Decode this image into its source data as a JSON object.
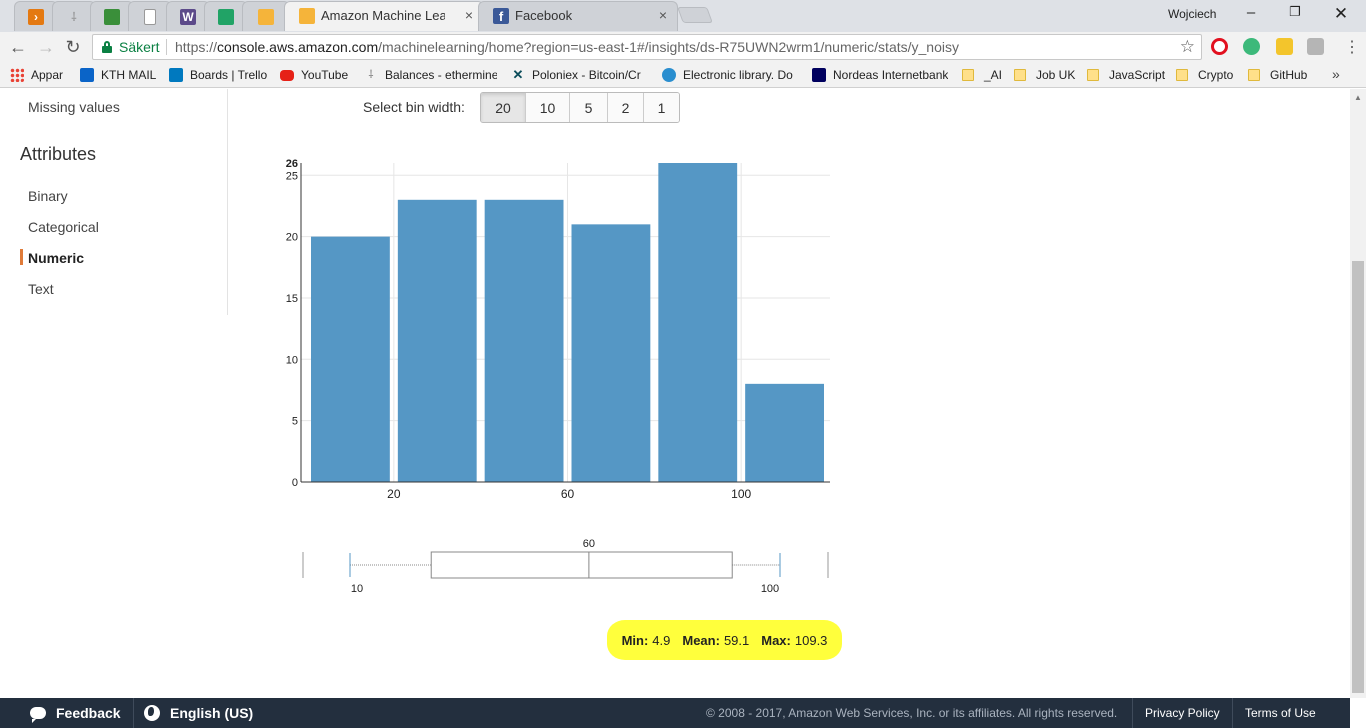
{
  "browser": {
    "tabs": [
      {
        "title": "",
        "icon": "aws-console-icon",
        "color": "#e47911"
      },
      {
        "title": "",
        "icon": "tool-icon",
        "color": "#888888"
      },
      {
        "title": "",
        "icon": "android-studio-icon",
        "color": "#3a8f3a"
      },
      {
        "title": "",
        "icon": "document-icon",
        "color": "#999999"
      },
      {
        "title": "",
        "icon": "w-app-icon",
        "color": "#5c4a8a"
      },
      {
        "title": "",
        "icon": "spreadsheet-icon",
        "color": "#21a366"
      },
      {
        "title": "",
        "icon": "package-icon",
        "color": "#f5b43a"
      },
      {
        "title": "Amazon Machine Learnin",
        "icon": "package-icon",
        "color": "#f5b43a"
      },
      {
        "title": "Facebook",
        "icon": "facebook-icon",
        "color": "#3b5998"
      }
    ],
    "user_name": "Wojciech",
    "close_glyph": "×",
    "secure_label": "Säkert",
    "url_scheme": "https://",
    "url_host": "console.aws.amazon.com",
    "url_path": "/machinelearning/home?region=us-east-1#/insights/ds-R75UWN2wrm1/numeric/stats/y_noisy",
    "bookmarks": [
      {
        "label": "Appar",
        "icon": "apps-grid-icon",
        "color": "#e94235"
      },
      {
        "label": "KTH MAIL",
        "icon": "outlook-icon",
        "color": "#0a64c8"
      },
      {
        "label": "Boards | Trello",
        "icon": "trello-icon",
        "color": "#0079bf"
      },
      {
        "label": "YouTube",
        "icon": "youtube-icon",
        "color": "#e62117"
      },
      {
        "label": "Balances - ethermine",
        "icon": "pickaxe-icon",
        "color": "#777777"
      },
      {
        "label": "Poloniex - Bitcoin/Cr",
        "icon": "poloniex-icon",
        "color": "#0a4c5a"
      },
      {
        "label": "Electronic library. Do",
        "icon": "library-icon",
        "color": "#2a8ecf"
      },
      {
        "label": "Nordeas Internetbank",
        "icon": "nordea-icon",
        "color": "#00005e"
      },
      {
        "label": "_AI",
        "icon": "folder-icon",
        "color": "#ffe08a"
      },
      {
        "label": "Job UK",
        "icon": "folder-icon",
        "color": "#ffe08a"
      },
      {
        "label": "JavaScript",
        "icon": "folder-icon",
        "color": "#ffe08a"
      },
      {
        "label": "Crypto",
        "icon": "folder-icon",
        "color": "#ffe08a"
      },
      {
        "label": "GitHub",
        "icon": "folder-icon",
        "color": "#ffe08a"
      }
    ],
    "more_bookmarks": "»"
  },
  "sidebar": {
    "missing_values": "Missing values",
    "heading": "Attributes",
    "items": [
      {
        "label": "Binary",
        "active": false
      },
      {
        "label": "Categorical",
        "active": false
      },
      {
        "label": "Numeric",
        "active": true
      },
      {
        "label": "Text",
        "active": false
      }
    ]
  },
  "bin_width": {
    "label": "Select bin width:",
    "options": [
      "20",
      "10",
      "5",
      "2",
      "1"
    ],
    "selected": "20"
  },
  "chart_data": {
    "type": "bar",
    "bin_width": 20,
    "bins": [
      {
        "from": 0,
        "to": 20,
        "count": 20
      },
      {
        "from": 20,
        "to": 40,
        "count": 23
      },
      {
        "from": 40,
        "to": 60,
        "count": 23
      },
      {
        "from": 60,
        "to": 80,
        "count": 21
      },
      {
        "from": 80,
        "to": 100,
        "count": 26
      },
      {
        "from": 100,
        "to": 120,
        "count": 8
      }
    ],
    "x_ticks": [
      20,
      60,
      100
    ],
    "y_ticks": [
      0,
      5,
      10,
      15,
      20,
      25
    ],
    "y_max_label": 26,
    "xlim": [
      0,
      120
    ],
    "ylim": [
      0,
      26
    ],
    "grid": true,
    "bar_color": "#5597c5",
    "title": "",
    "xlabel": "",
    "ylabel": ""
  },
  "boxplot": {
    "whisker_low": 10,
    "q1": 27,
    "median": 60,
    "q3": 90,
    "whisker_high": 100,
    "label_low": "10",
    "label_median": "60",
    "label_high": "100"
  },
  "stats": {
    "min_label": "Min:",
    "min_value": "4.9",
    "mean_label": "Mean:",
    "mean_value": "59.1",
    "max_label": "Max:",
    "max_value": "109.3"
  },
  "footer": {
    "feedback": "Feedback",
    "language": "English (US)",
    "copyright": "© 2008 - 2017, Amazon Web Services, Inc. or its affiliates. All rights reserved.",
    "privacy": "Privacy Policy",
    "terms": "Terms of Use"
  }
}
